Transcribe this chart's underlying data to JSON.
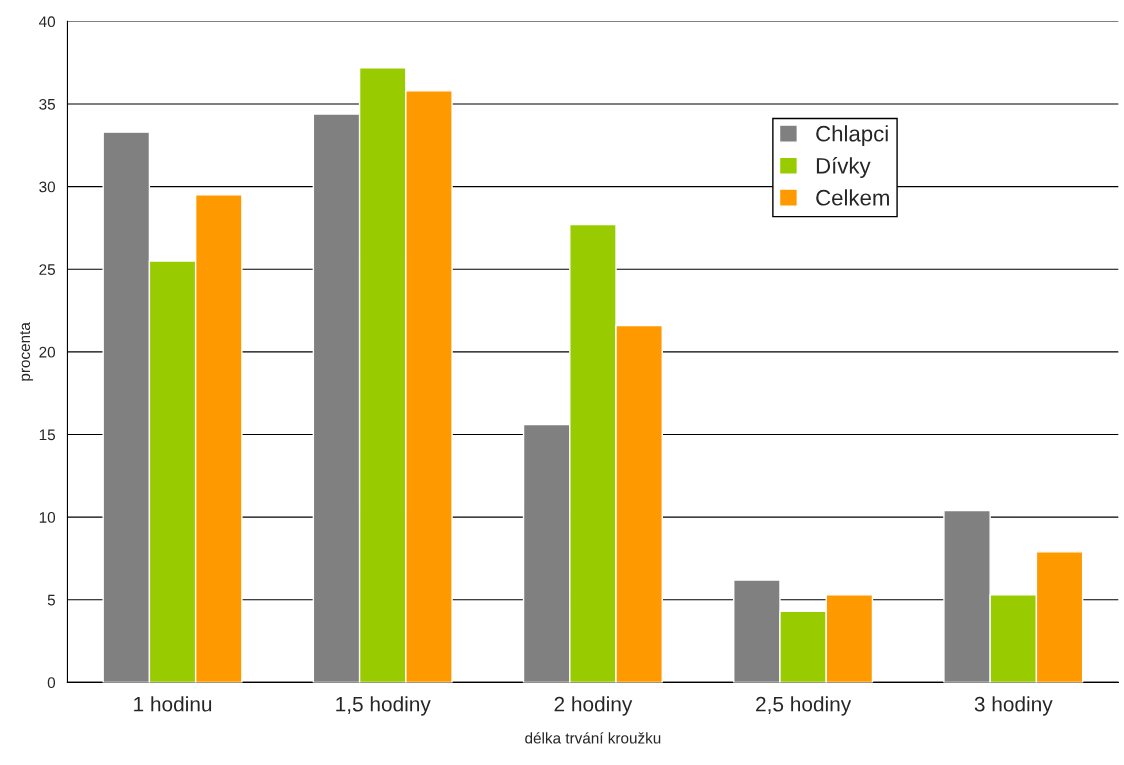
{
  "chart_data": {
    "type": "bar",
    "xlabel": "délka trvání kroužku",
    "ylabel": "procenta",
    "categories": [
      "1 hodinu",
      "1,5 hodiny",
      "2 hodiny",
      "2,5 hodiny",
      "3 hodiny"
    ],
    "series": [
      {
        "name": "Chlapci",
        "color": "#808080",
        "values": [
          33.3,
          34.4,
          15.6,
          6.2,
          10.4
        ]
      },
      {
        "name": "Dívky",
        "color": "#99cc00",
        "values": [
          25.5,
          37.2,
          27.7,
          4.3,
          5.3
        ]
      },
      {
        "name": "Celkem",
        "color": "#ff9900",
        "values": [
          29.5,
          35.8,
          21.6,
          5.3,
          7.9
        ]
      }
    ],
    "ylim": [
      0,
      40
    ],
    "yticks": [
      0,
      5,
      10,
      15,
      20,
      25,
      30,
      35,
      40
    ],
    "grid": "y",
    "legend": "top right"
  }
}
